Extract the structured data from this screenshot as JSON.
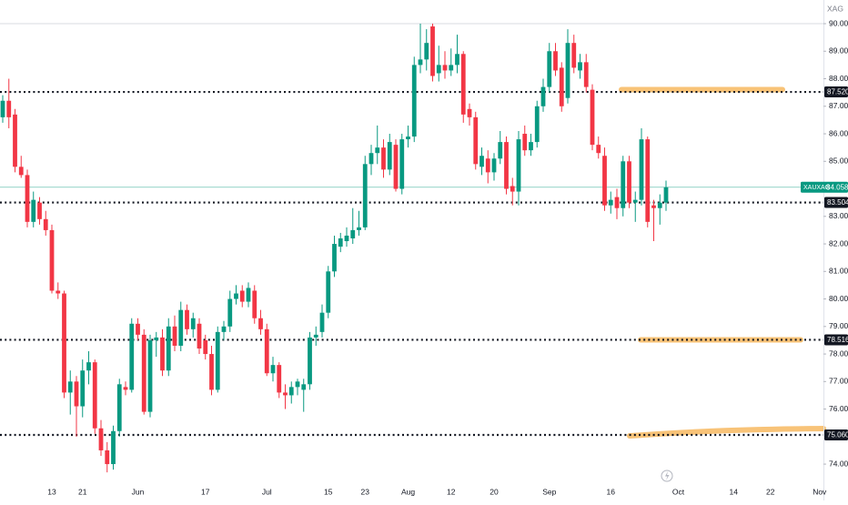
{
  "chart_data": {
    "type": "candlestick",
    "currency": "XAG",
    "symbol": "XAUXAG",
    "last_price": 84.058,
    "up_color": "#089981",
    "down_color": "#f23645",
    "ylim": [
      72.68,
      90.86
    ],
    "yticks": [
      {
        "value": 74,
        "label": "74.00"
      },
      {
        "value": 76,
        "label": "76.00"
      },
      {
        "value": 77,
        "label": "77.00"
      },
      {
        "value": 78,
        "label": "78.00"
      },
      {
        "value": 79,
        "label": "79.00"
      },
      {
        "value": 80,
        "label": "80.00"
      },
      {
        "value": 81,
        "label": "81.00"
      },
      {
        "value": 82,
        "label": "82.00"
      },
      {
        "value": 83,
        "label": "83.00"
      },
      {
        "value": 85,
        "label": "85.00"
      },
      {
        "value": 86,
        "label": "86.00"
      },
      {
        "value": 87,
        "label": "87.00"
      },
      {
        "value": 88,
        "label": "88.00"
      },
      {
        "value": 89,
        "label": "89.00"
      },
      {
        "value": 90,
        "label": "90.00"
      }
    ],
    "levels": [
      {
        "value": 87.52,
        "label": "87.520"
      },
      83.504,
      78.516,
      {
        "value": 75.06,
        "label": "75.060"
      }
    ],
    "categories": [
      null,
      null,
      null,
      null,
      null,
      null,
      null,
      null,
      "13",
      null,
      null,
      null,
      null,
      "21",
      null,
      null,
      null,
      null,
      null,
      null,
      null,
      null,
      "Jun",
      null,
      null,
      null,
      null,
      null,
      null,
      null,
      null,
      null,
      null,
      "17",
      null,
      null,
      null,
      null,
      null,
      null,
      null,
      null,
      null,
      "Jul",
      null,
      null,
      null,
      null,
      null,
      null,
      null,
      null,
      null,
      "15",
      null,
      null,
      null,
      null,
      null,
      "23",
      null,
      null,
      null,
      null,
      null,
      null,
      "Aug",
      null,
      null,
      null,
      null,
      null,
      null,
      "12",
      null,
      null,
      null,
      null,
      null,
      null,
      "20",
      null,
      null,
      null,
      null,
      null,
      null,
      null,
      null,
      "Sep",
      null,
      null,
      null,
      null,
      null,
      null,
      null,
      null,
      null,
      "16",
      null,
      null,
      null,
      null,
      null,
      null,
      null,
      null,
      null,
      null,
      "Oct",
      null,
      null,
      null,
      null,
      null,
      null,
      null,
      null,
      "14",
      null,
      null,
      null,
      null,
      null,
      "22",
      null,
      null,
      null,
      null,
      null,
      null,
      null,
      "Nov",
      null
    ],
    "ohlc": [
      [
        86.6,
        87.4,
        86.4,
        87.2
      ],
      [
        87.2,
        88.0,
        86.2,
        86.6
      ],
      [
        86.7,
        86.9,
        84.6,
        84.8
      ],
      [
        84.8,
        85.2,
        84.4,
        84.5
      ],
      [
        84.5,
        84.7,
        82.6,
        82.8
      ],
      [
        82.8,
        83.9,
        82.6,
        83.6
      ],
      [
        83.5,
        83.7,
        82.7,
        82.9
      ],
      [
        82.9,
        83.2,
        82.3,
        82.5
      ],
      [
        82.5,
        82.7,
        80.2,
        80.3
      ],
      [
        80.3,
        80.6,
        80.0,
        80.2
      ],
      [
        80.2,
        80.3,
        76.4,
        76.6
      ],
      [
        76.6,
        77.4,
        75.8,
        77.0
      ],
      [
        77.0,
        77.2,
        75.0,
        76.1
      ],
      [
        76.1,
        77.8,
        75.7,
        77.4
      ],
      [
        77.4,
        78.1,
        76.9,
        77.7
      ],
      [
        77.7,
        77.8,
        75.1,
        75.3
      ],
      [
        75.3,
        75.6,
        74.3,
        74.5
      ],
      [
        74.5,
        74.8,
        73.7,
        74.0
      ],
      [
        74.0,
        75.4,
        73.8,
        75.2
      ],
      [
        75.2,
        77.1,
        75.0,
        76.9
      ],
      [
        76.8,
        77.0,
        76.5,
        76.7
      ],
      [
        76.7,
        79.3,
        76.6,
        79.1
      ],
      [
        79.1,
        79.3,
        78.5,
        78.7
      ],
      [
        78.7,
        78.9,
        75.8,
        75.9
      ],
      [
        75.9,
        78.7,
        75.7,
        78.5
      ],
      [
        78.5,
        78.8,
        77.9,
        78.6
      ],
      [
        78.6,
        78.9,
        77.2,
        77.4
      ],
      [
        77.4,
        79.3,
        77.2,
        79.0
      ],
      [
        79.0,
        79.4,
        78.1,
        78.3
      ],
      [
        78.3,
        79.9,
        78.1,
        79.6
      ],
      [
        79.6,
        79.8,
        78.7,
        78.9
      ],
      [
        78.9,
        79.5,
        78.6,
        79.3
      ],
      [
        79.1,
        79.3,
        78.0,
        78.2
      ],
      [
        78.5,
        78.7,
        77.8,
        78.0
      ],
      [
        78.0,
        78.3,
        76.5,
        76.7
      ],
      [
        76.7,
        79.0,
        76.6,
        78.8
      ],
      [
        78.8,
        79.2,
        78.5,
        79.0
      ],
      [
        79.0,
        80.3,
        78.8,
        80.0
      ],
      [
        80.0,
        80.5,
        79.8,
        80.2
      ],
      [
        80.3,
        80.5,
        79.7,
        79.9
      ],
      [
        79.9,
        80.6,
        79.7,
        80.4
      ],
      [
        80.3,
        80.5,
        79.1,
        79.3
      ],
      [
        79.3,
        79.6,
        78.7,
        78.9
      ],
      [
        78.9,
        79.1,
        77.2,
        77.3
      ],
      [
        77.3,
        77.9,
        77.0,
        77.6
      ],
      [
        77.6,
        77.7,
        76.4,
        76.6
      ],
      [
        76.6,
        76.9,
        76.0,
        76.5
      ],
      [
        76.5,
        77.0,
        76.2,
        76.8
      ],
      [
        76.8,
        77.1,
        76.5,
        77.0
      ],
      [
        76.7,
        77.1,
        75.9,
        76.9
      ],
      [
        76.9,
        78.8,
        76.7,
        78.6
      ],
      [
        78.6,
        79.0,
        78.3,
        78.7
      ],
      [
        78.8,
        79.8,
        78.6,
        79.5
      ],
      [
        79.5,
        81.2,
        79.3,
        81.0
      ],
      [
        81.0,
        82.3,
        80.8,
        82.0
      ],
      [
        81.9,
        82.4,
        81.7,
        82.2
      ],
      [
        82.1,
        82.6,
        81.9,
        82.3
      ],
      [
        82.2,
        83.3,
        82.0,
        82.5
      ],
      [
        82.5,
        83.2,
        82.3,
        82.6
      ],
      [
        82.6,
        85.2,
        82.5,
        84.9
      ],
      [
        84.9,
        85.6,
        84.5,
        85.3
      ],
      [
        85.3,
        86.3,
        84.9,
        85.5
      ],
      [
        85.5,
        85.8,
        84.4,
        84.7
      ],
      [
        84.7,
        86.0,
        84.5,
        85.7
      ],
      [
        85.6,
        85.8,
        83.9,
        84.0
      ],
      [
        84.0,
        86.0,
        83.8,
        85.8
      ],
      [
        85.8,
        86.3,
        85.5,
        85.9
      ],
      [
        85.9,
        88.8,
        85.7,
        88.5
      ],
      [
        88.5,
        90.0,
        88.2,
        88.7
      ],
      [
        88.7,
        89.8,
        88.3,
        89.3
      ],
      [
        89.9,
        90.0,
        87.9,
        88.1
      ],
      [
        88.2,
        89.2,
        87.9,
        88.5
      ],
      [
        88.5,
        89.0,
        88.0,
        88.3
      ],
      [
        88.3,
        89.1,
        88.1,
        88.5
      ],
      [
        88.5,
        89.6,
        88.2,
        88.9
      ],
      [
        88.9,
        89.0,
        86.4,
        86.7
      ],
      [
        86.9,
        87.1,
        86.3,
        86.6
      ],
      [
        86.6,
        86.8,
        84.7,
        84.9
      ],
      [
        84.8,
        85.5,
        84.5,
        85.2
      ],
      [
        85.1,
        85.4,
        84.2,
        84.6
      ],
      [
        84.6,
        85.3,
        84.3,
        85.1
      ],
      [
        85.1,
        86.1,
        84.9,
        85.7
      ],
      [
        85.7,
        85.9,
        83.8,
        84.0
      ],
      [
        84.1,
        84.4,
        83.4,
        83.9
      ],
      [
        83.9,
        86.1,
        83.4,
        85.8
      ],
      [
        86.0,
        86.3,
        85.2,
        85.4
      ],
      [
        85.4,
        86.0,
        85.2,
        85.7
      ],
      [
        85.7,
        87.2,
        85.5,
        87.0
      ],
      [
        87.0,
        88.0,
        86.8,
        87.7
      ],
      [
        87.7,
        89.3,
        87.5,
        89.0
      ],
      [
        89.0,
        89.3,
        88.1,
        88.3
      ],
      [
        88.4,
        88.6,
        86.8,
        87.0
      ],
      [
        87.3,
        89.8,
        87.1,
        89.3
      ],
      [
        89.3,
        89.6,
        88.2,
        88.4
      ],
      [
        88.3,
        88.9,
        88.0,
        88.6
      ],
      [
        88.6,
        88.9,
        87.5,
        87.7
      ],
      [
        87.6,
        87.8,
        85.4,
        85.6
      ],
      [
        85.6,
        85.9,
        85.1,
        85.3
      ],
      [
        85.2,
        85.5,
        83.2,
        83.4
      ],
      [
        83.4,
        83.9,
        83.1,
        83.6
      ],
      [
        83.7,
        84.0,
        82.9,
        83.3
      ],
      [
        83.3,
        85.2,
        83.0,
        85.0
      ],
      [
        85.0,
        85.2,
        83.3,
        83.5
      ],
      [
        83.5,
        83.9,
        82.8,
        83.6
      ],
      [
        83.6,
        86.2,
        83.4,
        85.8
      ],
      [
        85.8,
        85.9,
        82.6,
        82.8
      ],
      [
        83.4,
        83.6,
        82.1,
        83.3
      ],
      [
        83.3,
        83.8,
        82.7,
        83.5
      ],
      [
        83.5,
        84.3,
        83.2,
        84.058
      ],
      null,
      null,
      null,
      null,
      null,
      null,
      null,
      null,
      null,
      null,
      null,
      null,
      null,
      null,
      null,
      null,
      null,
      null,
      null,
      null,
      null,
      null,
      null,
      null,
      null,
      null
    ]
  }
}
